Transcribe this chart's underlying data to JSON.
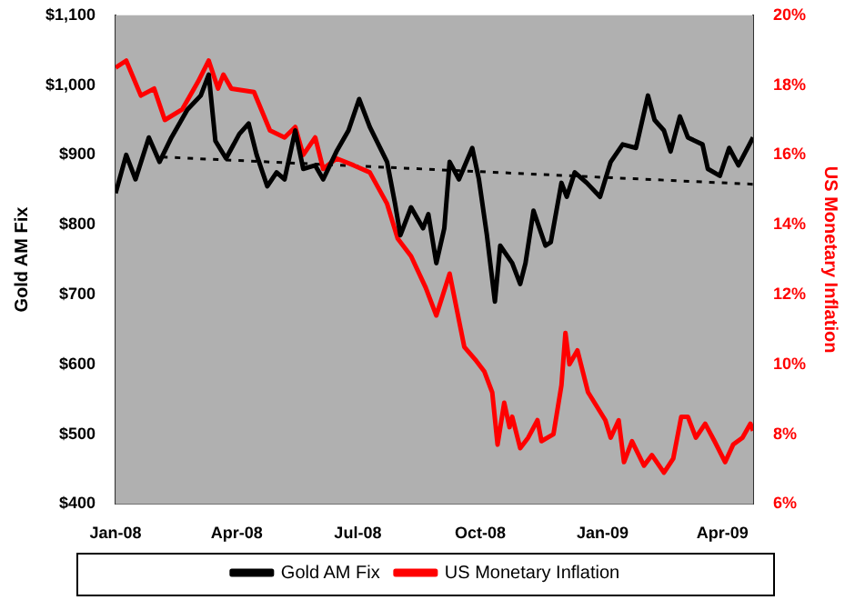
{
  "chart_data": {
    "type": "line",
    "xlabel": null,
    "ylabel": "Gold AM Fix",
    "y2label": "US Monetary Inflation",
    "xlim": [
      "2008-01-01",
      "2009-04-24"
    ],
    "xticks": [
      {
        "value": "2008-01-01",
        "label": "Jan-08"
      },
      {
        "value": "2008-04-01",
        "label": "Apr-08"
      },
      {
        "value": "2008-07-01",
        "label": "Jul-08"
      },
      {
        "value": "2008-10-01",
        "label": "Oct-08"
      },
      {
        "value": "2009-01-01",
        "label": "Jan-09"
      },
      {
        "value": "2009-04-01",
        "label": "Apr-09"
      }
    ],
    "ylim": [
      400,
      1100
    ],
    "yticks": [
      {
        "value": 400,
        "label": "$400"
      },
      {
        "value": 500,
        "label": "$500"
      },
      {
        "value": 600,
        "label": "$600"
      },
      {
        "value": 700,
        "label": "$700"
      },
      {
        "value": 800,
        "label": "$800"
      },
      {
        "value": 900,
        "label": "$900"
      },
      {
        "value": 1000,
        "label": "$1,000"
      },
      {
        "value": 1100,
        "label": "$1,100"
      }
    ],
    "y2lim": [
      6,
      20
    ],
    "y2ticks": [
      {
        "value": 6,
        "label": "6%"
      },
      {
        "value": 8,
        "label": "8%"
      },
      {
        "value": 10,
        "label": "10%"
      },
      {
        "value": 12,
        "label": "12%"
      },
      {
        "value": 14,
        "label": "14%"
      },
      {
        "value": 16,
        "label": "16%"
      },
      {
        "value": 18,
        "label": "18%"
      },
      {
        "value": 20,
        "label": "20%"
      }
    ],
    "grid": false,
    "legend": "bottom",
    "marker": "none",
    "series": [
      {
        "name": "Gold AM Fix",
        "color": "#000000",
        "x": [
          "2008-01-01",
          "2008-01-09",
          "2008-01-16",
          "2008-01-26",
          "2008-02-03",
          "2008-02-12",
          "2008-02-24",
          "2008-03-05",
          "2008-03-11",
          "2008-03-16",
          "2008-03-24",
          "2008-04-03",
          "2008-04-10",
          "2008-04-16",
          "2008-04-24",
          "2008-05-01",
          "2008-05-07",
          "2008-05-15",
          "2008-05-21",
          "2008-05-30",
          "2008-06-05",
          "2008-06-15",
          "2008-06-24",
          "2008-07-02",
          "2008-07-10",
          "2008-07-23",
          "2008-07-29",
          "2008-08-02",
          "2008-08-10",
          "2008-08-19",
          "2008-08-23",
          "2008-08-29",
          "2008-09-04",
          "2008-09-08",
          "2008-09-15",
          "2008-09-25",
          "2008-09-30",
          "2008-10-06",
          "2008-10-12",
          "2008-10-16",
          "2008-10-25",
          "2008-10-31",
          "2008-11-04",
          "2008-11-10",
          "2008-11-19",
          "2008-11-23",
          "2008-12-01",
          "2008-12-05",
          "2008-12-11",
          "2008-12-20",
          "2008-12-30",
          "2009-01-07",
          "2009-01-16",
          "2009-01-26",
          "2009-02-04",
          "2009-02-09",
          "2009-02-16",
          "2009-02-21",
          "2009-02-28",
          "2009-03-06",
          "2009-03-17",
          "2009-03-21",
          "2009-03-30",
          "2009-04-06",
          "2009-04-13",
          "2009-04-24"
        ],
        "values": [
          845,
          900,
          865,
          925,
          890,
          925,
          965,
          985,
          1015,
          920,
          895,
          930,
          945,
          900,
          855,
          875,
          865,
          935,
          880,
          885,
          865,
          905,
          935,
          980,
          940,
          890,
          830,
          785,
          825,
          795,
          815,
          745,
          795,
          890,
          865,
          910,
          865,
          785,
          690,
          770,
          745,
          715,
          745,
          820,
          770,
          775,
          860,
          840,
          875,
          860,
          840,
          890,
          915,
          910,
          985,
          950,
          935,
          905,
          955,
          925,
          915,
          880,
          870,
          910,
          885,
          925
        ]
      },
      {
        "name": "US Monetary Inflation",
        "color": "#ff0000",
        "axis": "y2",
        "x": [
          "2008-01-01",
          "2008-01-09",
          "2008-01-20",
          "2008-01-30",
          "2008-02-07",
          "2008-02-20",
          "2008-03-03",
          "2008-03-11",
          "2008-03-18",
          "2008-03-22",
          "2008-03-28",
          "2008-04-14",
          "2008-04-26",
          "2008-05-07",
          "2008-05-15",
          "2008-05-21",
          "2008-05-30",
          "2008-06-05",
          "2008-06-15",
          "2008-06-28",
          "2008-07-10",
          "2008-07-23",
          "2008-07-31",
          "2008-08-10",
          "2008-08-21",
          "2008-08-29",
          "2008-09-08",
          "2008-09-19",
          "2008-09-28",
          "2008-10-04",
          "2008-10-10",
          "2008-10-14",
          "2008-10-19",
          "2008-10-23",
          "2008-10-25",
          "2008-10-31",
          "2008-11-06",
          "2008-11-13",
          "2008-11-16",
          "2008-11-25",
          "2008-12-01",
          "2008-12-04",
          "2008-12-07",
          "2008-12-13",
          "2008-12-21",
          "2009-01-03",
          "2009-01-07",
          "2009-01-13",
          "2009-01-17",
          "2009-01-23",
          "2009-02-01",
          "2009-02-07",
          "2009-02-16",
          "2009-02-23",
          "2009-03-01",
          "2009-03-06",
          "2009-03-12",
          "2009-03-19",
          "2009-03-26",
          "2009-04-03",
          "2009-04-09",
          "2009-04-16",
          "2009-04-22",
          "2009-04-24"
        ],
        "values": [
          18.5,
          18.7,
          17.7,
          17.9,
          17.0,
          17.3,
          18.1,
          18.7,
          17.9,
          18.3,
          17.9,
          17.8,
          16.7,
          16.5,
          16.8,
          16.0,
          16.5,
          15.6,
          15.9,
          15.7,
          15.5,
          14.6,
          13.6,
          13.1,
          12.2,
          11.4,
          12.6,
          10.5,
          10.1,
          9.8,
          9.2,
          7.7,
          8.9,
          8.2,
          8.5,
          7.6,
          7.9,
          8.4,
          7.8,
          8.0,
          9.4,
          10.9,
          10.0,
          10.4,
          9.2,
          8.4,
          7.9,
          8.4,
          7.2,
          7.8,
          7.1,
          7.4,
          6.9,
          7.3,
          8.5,
          8.5,
          7.9,
          8.3,
          7.8,
          7.2,
          7.7,
          7.9,
          8.3,
          8.1
        ]
      },
      {
        "type": "line",
        "color": "#000000",
        "line_style": "dashed",
        "x": [
          "2008-02-05",
          "2009-04-24"
        ],
        "values": [
          897,
          858
        ]
      }
    ]
  }
}
